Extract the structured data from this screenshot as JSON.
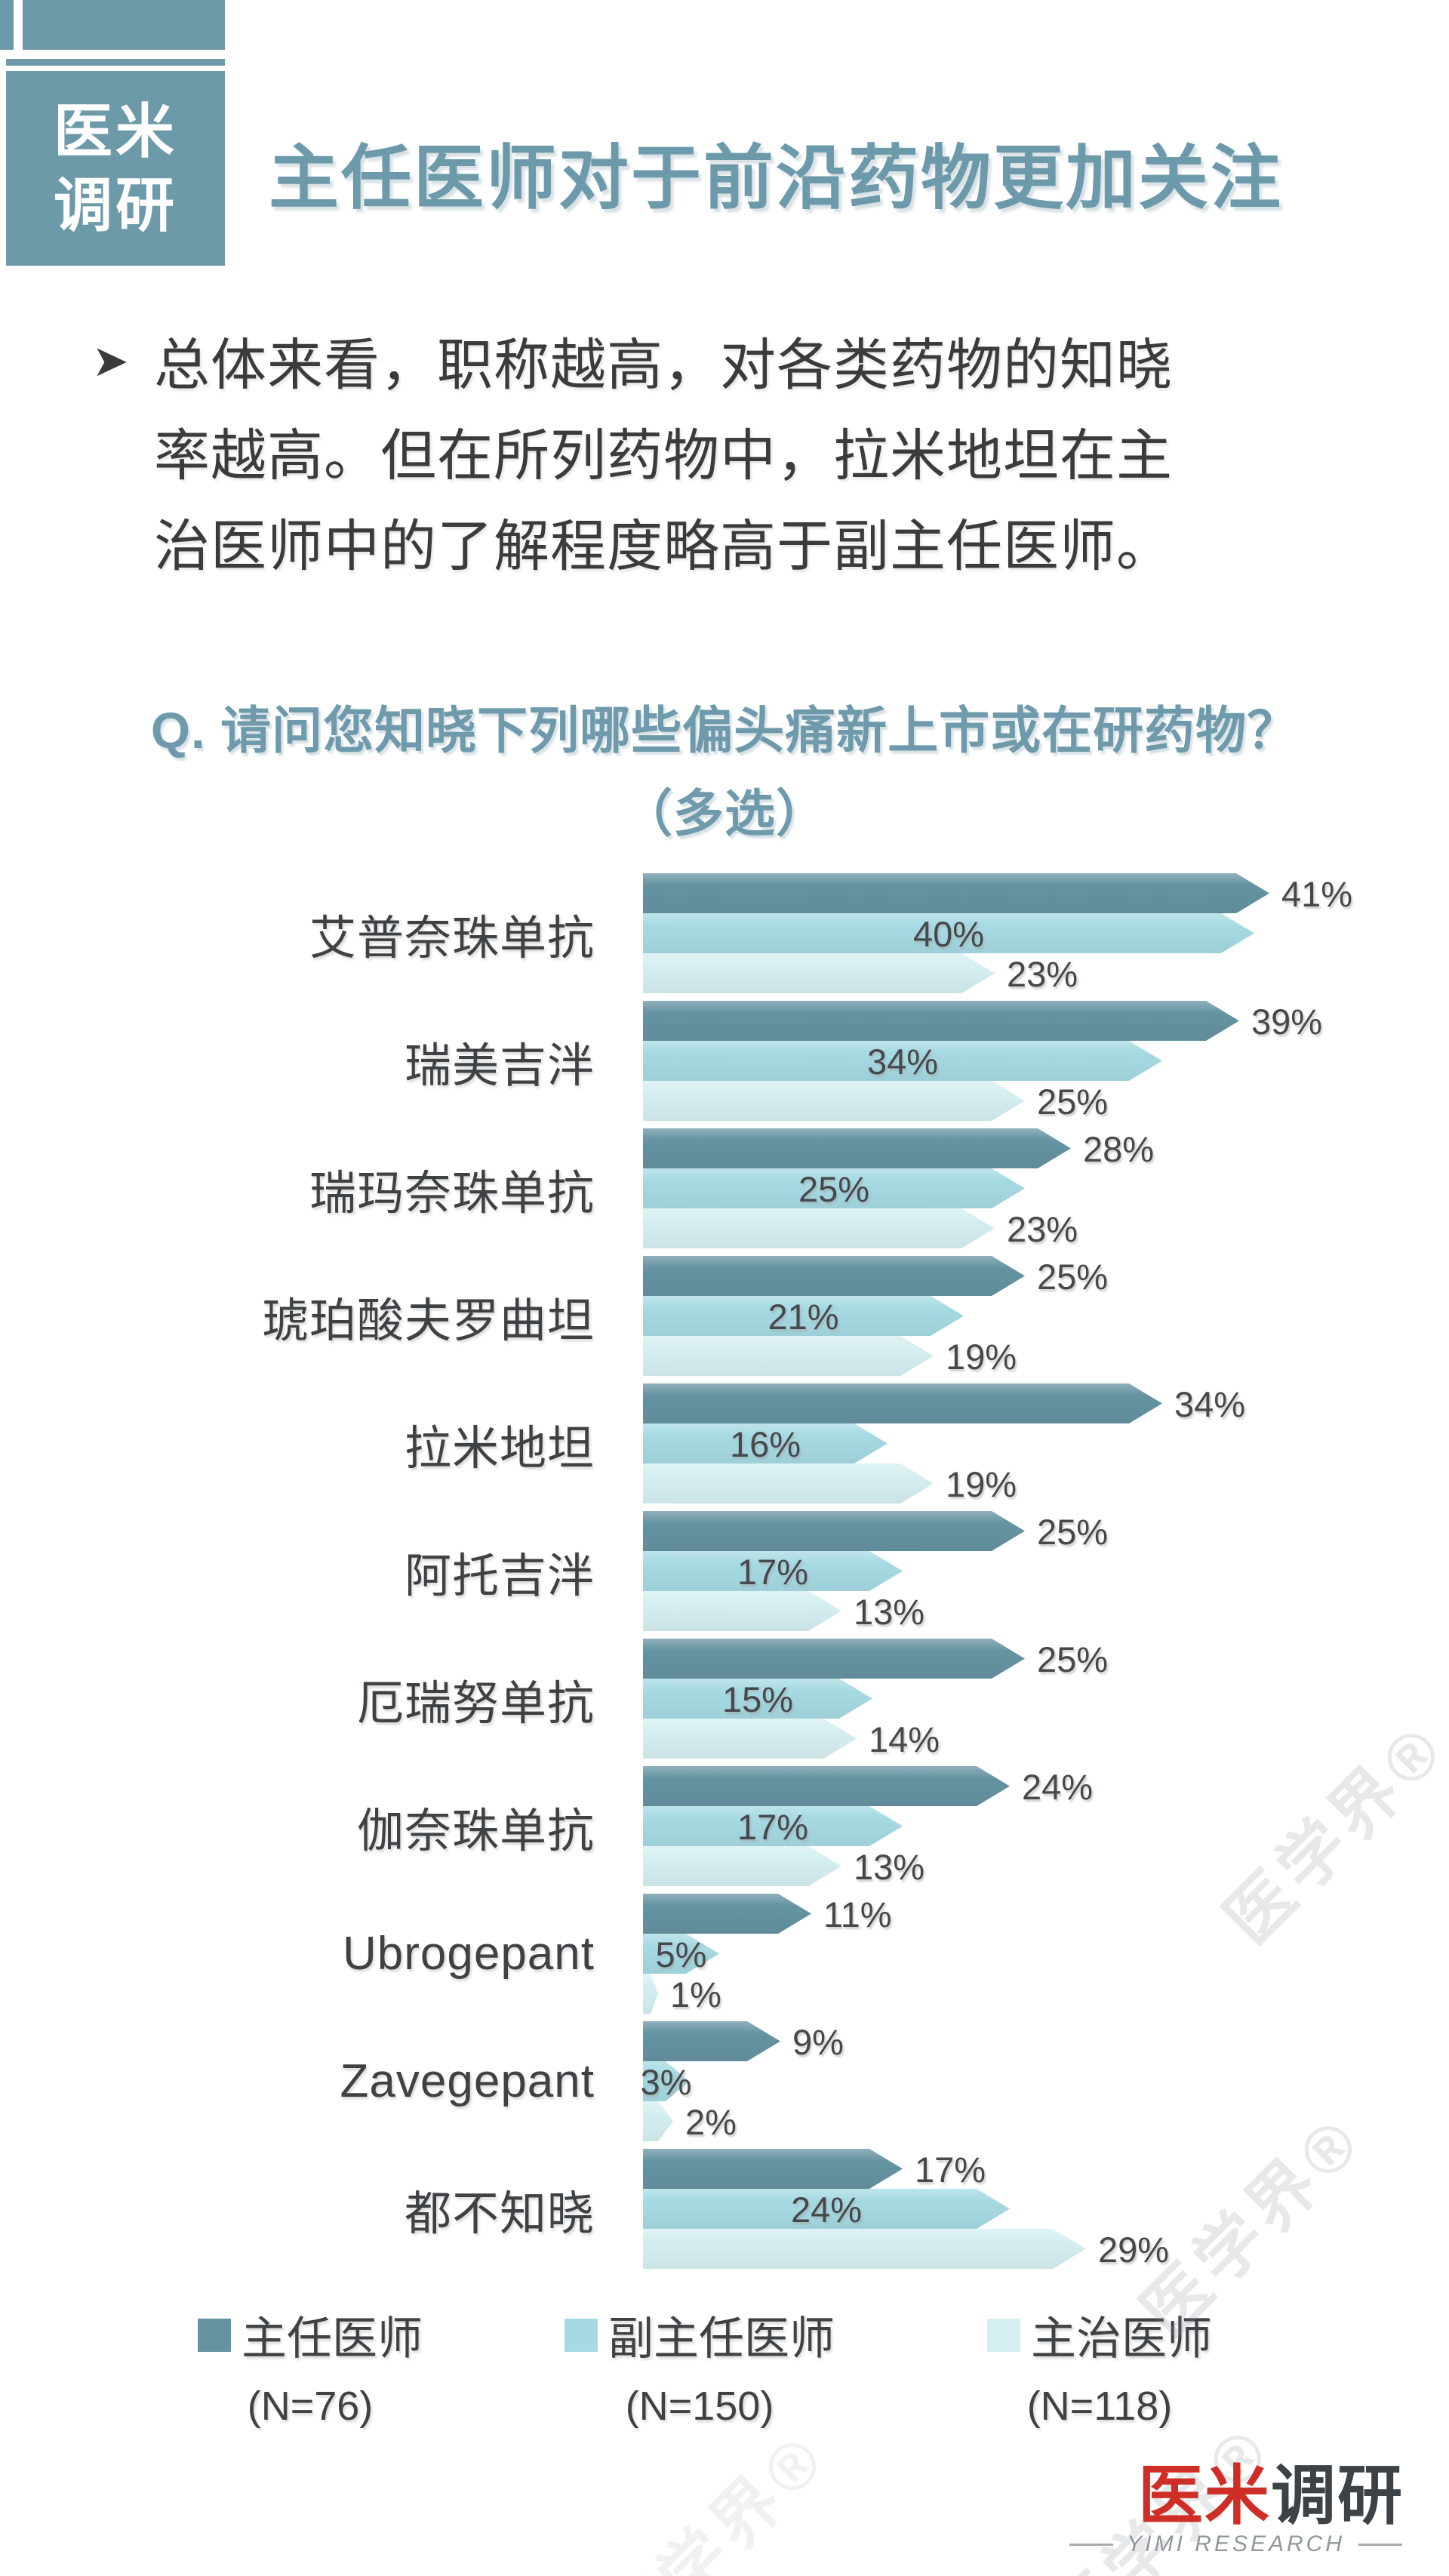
{
  "brand": {
    "logo_line1": "医米",
    "logo_line2": "调研",
    "color": "#6d9aa9"
  },
  "header": {
    "title": "主任医师对于前沿药物更加关注"
  },
  "summary": {
    "bullet_glyph": "➤",
    "lines": [
      "总体来看，职称越高，对各类药物的知晓",
      "率越高。但在所列药物中，拉米地坦在主",
      "治医师中的了解程度略高于副主任医师。"
    ]
  },
  "question": {
    "line1": "Q. 请问您知晓下列哪些偏头痛新上市或在研药物？",
    "line2": "（多选）"
  },
  "chart_data": {
    "type": "bar",
    "orientation": "horizontal",
    "unit": "%",
    "xlim": [
      0,
      41
    ],
    "grid": false,
    "legend_position": "bottom",
    "categories": [
      "艾普奈珠单抗",
      "瑞美吉泮",
      "瑞玛奈珠单抗",
      "琥珀酸夫罗曲坦",
      "拉米地坦",
      "阿托吉泮",
      "厄瑞努单抗",
      "伽奈珠单抗",
      "Ubrogepant",
      "Zavegepant",
      "都不知晓"
    ],
    "series": [
      {
        "name": "主任医师",
        "n_label": "(N=76)",
        "color": "#6593a2",
        "values": [
          41,
          39,
          28,
          25,
          34,
          25,
          25,
          24,
          11,
          9,
          17
        ]
      },
      {
        "name": "副主任医师",
        "n_label": "(N=150)",
        "color": "#a6dae3",
        "values": [
          40,
          34,
          25,
          21,
          16,
          17,
          15,
          17,
          5,
          3,
          24
        ]
      },
      {
        "name": "主治医师",
        "n_label": "(N=118)",
        "color": "#d5eff0",
        "values": [
          23,
          25,
          23,
          19,
          19,
          13,
          14,
          13,
          1,
          2,
          29
        ]
      }
    ]
  },
  "watermark": {
    "text": "医学界®"
  },
  "footer": {
    "brand_red": "医米",
    "brand_dark": "调研",
    "subtitle": "YIMI RESEARCH"
  }
}
